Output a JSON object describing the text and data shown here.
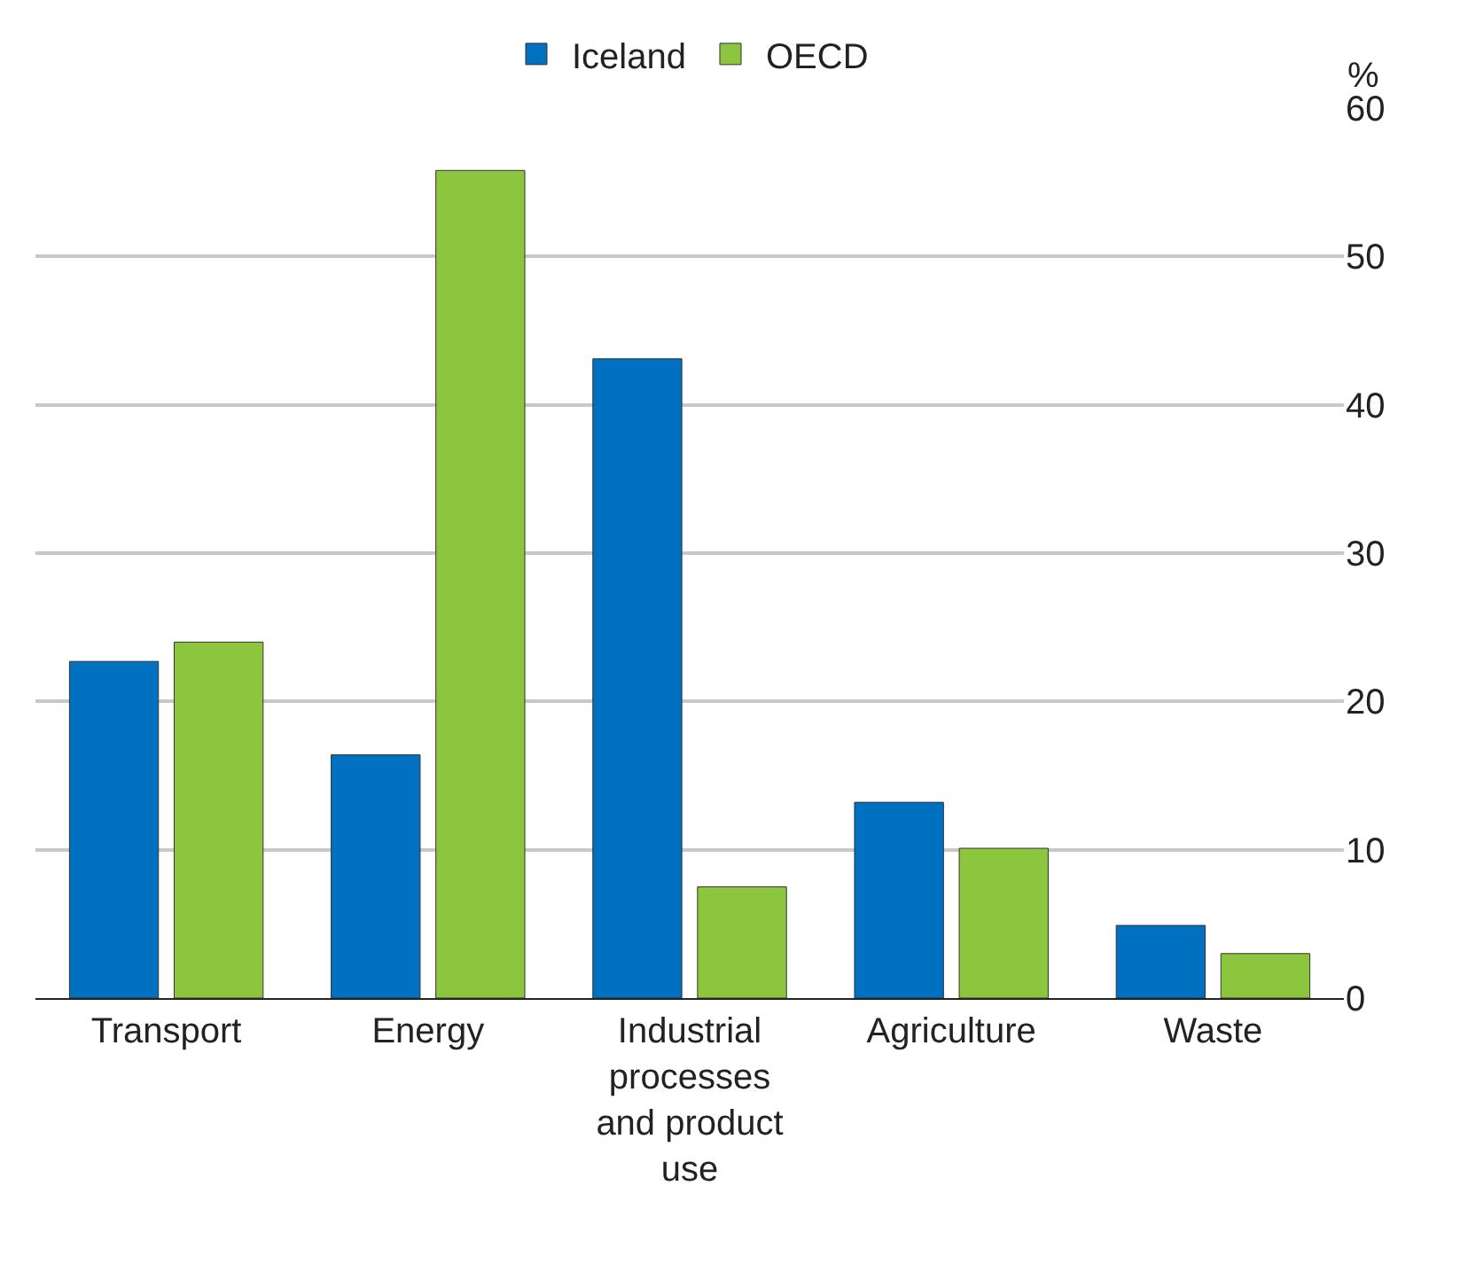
{
  "chart_data": {
    "type": "bar",
    "ylabel": "%",
    "categories": [
      "Transport",
      "Energy",
      "Industrial\nprocesses\nand product\nuse",
      "Agriculture",
      "Waste"
    ],
    "series": [
      {
        "name": "Iceland",
        "color": "#0070c0",
        "values": [
          22.7,
          16.4,
          43.1,
          13.2,
          4.9
        ]
      },
      {
        "name": "OECD",
        "color": "#8cc63f",
        "values": [
          24.0,
          55.8,
          7.5,
          10.1,
          3.0
        ]
      }
    ],
    "ylim": [
      0,
      60
    ],
    "yticks": [
      0,
      10,
      20,
      30,
      40,
      50,
      60
    ],
    "grid": "y",
    "legend": "top"
  }
}
